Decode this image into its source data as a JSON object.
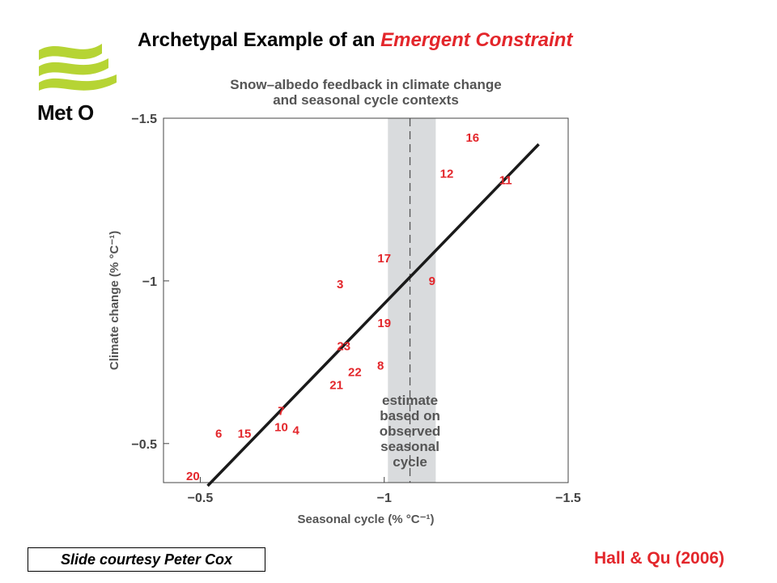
{
  "slide": {
    "title_prefix": "Archetypal Example of an ",
    "title_highlight": "Emergent Constraint",
    "logo_text": "Met O",
    "courtesy": "Slide courtesy Peter Cox",
    "citation": "Hall & Qu (2006)"
  },
  "colors": {
    "accent_red": "#e3262b",
    "logo_green": "#b6d434",
    "shaded_band": "#d9dbdd",
    "line": "#1a1a1a"
  },
  "chart_data": {
    "type": "scatter",
    "title": "Snow–albedo feedback in climate change\nand seasonal cycle contexts",
    "xlabel": "Seasonal cycle (% °C⁻¹)",
    "ylabel": "Climate change (% °C⁻¹)",
    "xlim": [
      -0.4,
      -1.5
    ],
    "ylim": [
      -0.38,
      -1.5
    ],
    "x_reversed": true,
    "y_reversed": true,
    "x_ticks": [
      -0.5,
      -1,
      -1.5
    ],
    "x_tick_labels": [
      "−0.5",
      "−1",
      "−1.5"
    ],
    "y_ticks": [
      -0.5,
      -1,
      -1.5
    ],
    "y_tick_labels": [
      "−0.5",
      "−1",
      "−1.5"
    ],
    "grid": false,
    "points": [
      {
        "label": "16",
        "x": -1.24,
        "y": -1.44
      },
      {
        "label": "12",
        "x": -1.17,
        "y": -1.33
      },
      {
        "label": "11",
        "x": -1.33,
        "y": -1.31
      },
      {
        "label": "17",
        "x": -1.0,
        "y": -1.07
      },
      {
        "label": "3",
        "x": -0.88,
        "y": -0.99
      },
      {
        "label": "9",
        "x": -1.13,
        "y": -1.0
      },
      {
        "label": "19",
        "x": -1.0,
        "y": -0.87
      },
      {
        "label": "23",
        "x": -0.89,
        "y": -0.8
      },
      {
        "label": "8",
        "x": -0.99,
        "y": -0.74
      },
      {
        "label": "22",
        "x": -0.92,
        "y": -0.72
      },
      {
        "label": "21",
        "x": -0.87,
        "y": -0.68
      },
      {
        "label": "7",
        "x": -0.72,
        "y": -0.6
      },
      {
        "label": "10",
        "x": -0.72,
        "y": -0.55
      },
      {
        "label": "4",
        "x": -0.76,
        "y": -0.54
      },
      {
        "label": "6",
        "x": -0.55,
        "y": -0.53
      },
      {
        "label": "15",
        "x": -0.62,
        "y": -0.53
      },
      {
        "label": "20",
        "x": -0.48,
        "y": -0.4
      }
    ],
    "fit_line": {
      "x": [
        -0.52,
        -1.42
      ],
      "y": [
        -0.37,
        -1.42
      ]
    },
    "observed_estimate": {
      "center": -1.07,
      "range": [
        -1.01,
        -1.14
      ]
    },
    "annotation": "estimate\nbased on\nobserved\nseasonal\ncycle"
  }
}
